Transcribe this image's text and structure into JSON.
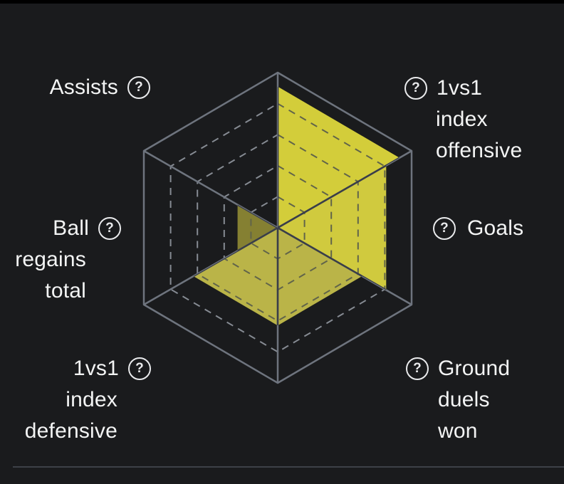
{
  "page": {
    "background": "#1a1b1d",
    "top_bar_color": "#000000",
    "divider_color": "#3d4147",
    "text_color": "#f3f4f4"
  },
  "labels": {
    "help_icon": "?",
    "assists": {
      "row1": "Assists"
    },
    "offensive": {
      "row1": "1vs1",
      "row2": "index",
      "row3": "offensive"
    },
    "ball_regains": {
      "row1": "Ball",
      "row2": "regains",
      "row3": "total"
    },
    "goals": {
      "row1": "Goals"
    },
    "defensive": {
      "row1": "1vs1",
      "row2": "index",
      "row3": "defensive"
    },
    "ground_duels": {
      "row1": "Ground",
      "row2": "duels",
      "row3": "won"
    }
  },
  "chart_data": {
    "type": "radar",
    "shape": "hexagon-sectors",
    "max": 100,
    "grid_levels": [
      20,
      40,
      60,
      80,
      100
    ],
    "grid_style": {
      "inner_rings": "dashed",
      "outer_ring": "solid",
      "spokes": "solid",
      "line_color": "#6e747e",
      "dash_color": "#868b93",
      "dash_over_fill_color": "#61644a",
      "spoke_over_fill_color": "#3a3e48"
    },
    "axes": [
      {
        "id": "assists",
        "label": "Assists",
        "value": 0,
        "sector": "top-left",
        "fill": "none"
      },
      {
        "id": "offensive",
        "label": "1vs1 index offensive",
        "value": 91,
        "sector": "top-right",
        "fill": "#d3cd3a"
      },
      {
        "id": "goals",
        "label": "Goals",
        "value": 81,
        "sector": "right",
        "fill": "#d0ca3e"
      },
      {
        "id": "ground_duels",
        "label": "Ground duels won",
        "value": 63,
        "sector": "bottom-right",
        "fill": "#bab448"
      },
      {
        "id": "defensive",
        "label": "1vs1 index defensive",
        "value": 63,
        "sector": "bottom-left",
        "fill": "#bab448"
      },
      {
        "id": "ball_regains",
        "label": "Ball regains total",
        "value": 30,
        "sector": "left",
        "fill": "#858032"
      }
    ]
  }
}
